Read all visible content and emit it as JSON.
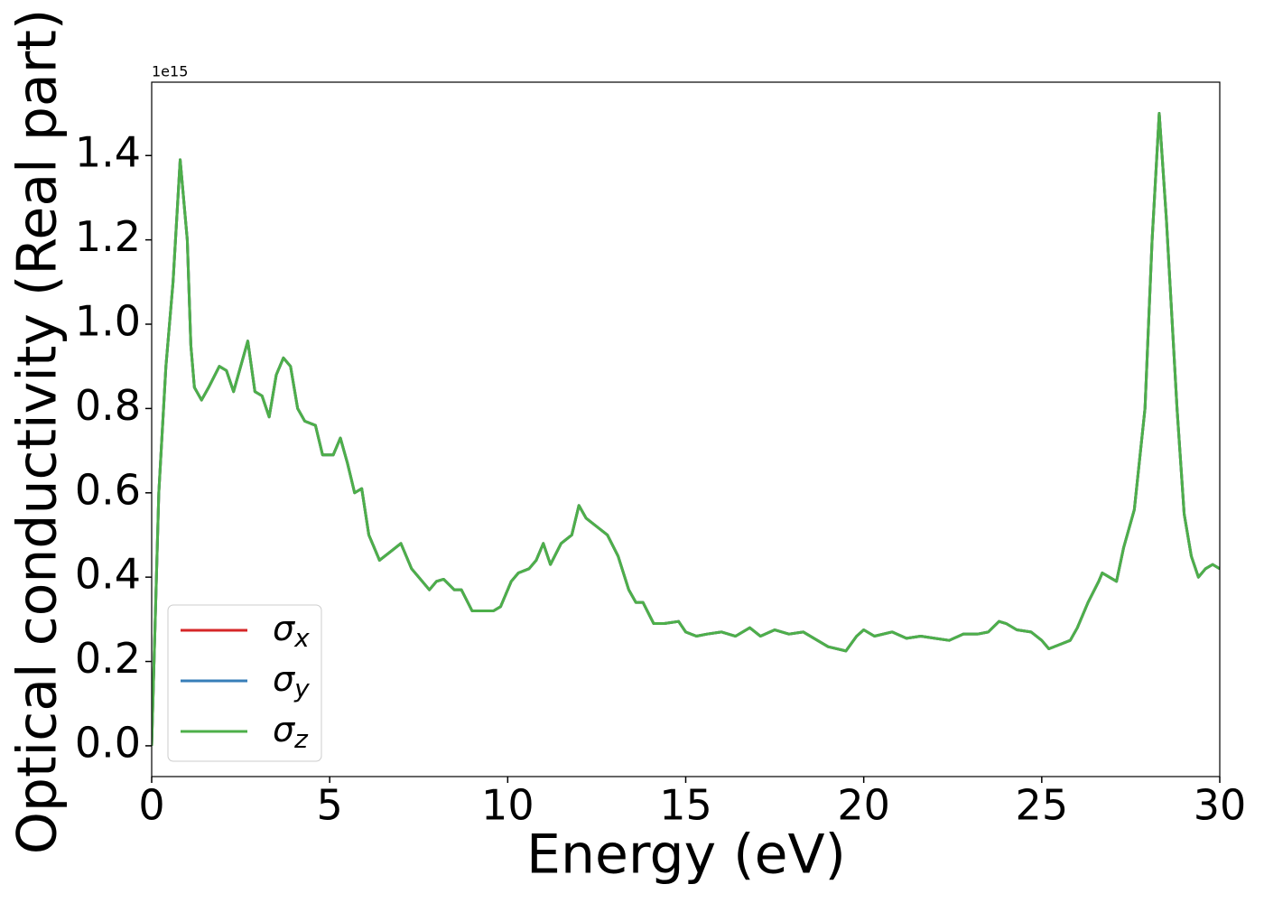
{
  "chart_data": {
    "type": "line",
    "xlabel": "Energy (eV)",
    "ylabel": "Optical conductivity (Real part)",
    "y_offset_label": "1e15",
    "x": [
      0,
      0.1,
      0.2,
      0.4,
      0.6,
      0.8,
      1.0,
      1.1,
      1.2,
      1.4,
      1.6,
      1.9,
      2.1,
      2.3,
      2.5,
      2.7,
      2.9,
      3.1,
      3.3,
      3.5,
      3.7,
      3.9,
      4.1,
      4.3,
      4.6,
      4.8,
      5.1,
      5.3,
      5.5,
      5.7,
      5.9,
      6.1,
      6.4,
      6.7,
      7.0,
      7.3,
      7.6,
      7.8,
      8.0,
      8.2,
      8.5,
      8.7,
      9.0,
      9.3,
      9.6,
      9.8,
      10.1,
      10.3,
      10.6,
      10.8,
      11.0,
      11.2,
      11.5,
      11.8,
      12.0,
      12.2,
      12.5,
      12.8,
      13.1,
      13.4,
      13.6,
      13.8,
      14.1,
      14.4,
      14.8,
      15.0,
      15.3,
      15.6,
      16.0,
      16.4,
      16.8,
      17.1,
      17.5,
      17.9,
      18.3,
      18.7,
      19.0,
      19.5,
      19.8,
      20.0,
      20.3,
      20.8,
      21.2,
      21.6,
      22.0,
      22.4,
      22.8,
      23.2,
      23.5,
      23.8,
      24.0,
      24.3,
      24.7,
      25.0,
      25.2,
      25.5,
      25.8,
      26.0,
      26.3,
      26.6,
      26.7,
      26.9,
      27.1,
      27.3,
      27.6,
      27.9,
      28.1,
      28.3,
      28.5,
      28.8,
      29.0,
      29.2,
      29.4,
      29.6,
      29.8,
      30.0
    ],
    "series": [
      {
        "name": "σx",
        "color": "#d62728",
        "values": [
          0.0,
          0.3,
          0.6,
          0.9,
          1.1,
          1.39,
          1.2,
          0.95,
          0.85,
          0.82,
          0.85,
          0.9,
          0.89,
          0.84,
          0.9,
          0.96,
          0.84,
          0.83,
          0.78,
          0.88,
          0.92,
          0.9,
          0.8,
          0.77,
          0.76,
          0.69,
          0.69,
          0.73,
          0.67,
          0.6,
          0.61,
          0.5,
          0.44,
          0.46,
          0.48,
          0.42,
          0.39,
          0.37,
          0.39,
          0.395,
          0.37,
          0.37,
          0.32,
          0.32,
          0.32,
          0.33,
          0.39,
          0.41,
          0.42,
          0.44,
          0.48,
          0.43,
          0.48,
          0.5,
          0.57,
          0.54,
          0.52,
          0.5,
          0.45,
          0.37,
          0.34,
          0.34,
          0.29,
          0.29,
          0.295,
          0.27,
          0.26,
          0.265,
          0.27,
          0.26,
          0.28,
          0.26,
          0.275,
          0.265,
          0.27,
          0.25,
          0.235,
          0.225,
          0.26,
          0.275,
          0.26,
          0.27,
          0.255,
          0.26,
          0.255,
          0.25,
          0.265,
          0.265,
          0.27,
          0.295,
          0.29,
          0.275,
          0.27,
          0.25,
          0.23,
          0.24,
          0.25,
          0.28,
          0.34,
          0.39,
          0.41,
          0.4,
          0.39,
          0.47,
          0.56,
          0.8,
          1.2,
          1.5,
          1.25,
          0.8,
          0.55,
          0.45,
          0.4,
          0.42,
          0.43,
          0.42
        ]
      },
      {
        "name": "σy",
        "color": "#377eb8",
        "values": [
          0.0,
          0.3,
          0.6,
          0.9,
          1.1,
          1.39,
          1.2,
          0.95,
          0.85,
          0.82,
          0.85,
          0.9,
          0.89,
          0.84,
          0.9,
          0.96,
          0.84,
          0.83,
          0.78,
          0.88,
          0.92,
          0.9,
          0.8,
          0.77,
          0.76,
          0.69,
          0.69,
          0.73,
          0.67,
          0.6,
          0.61,
          0.5,
          0.44,
          0.46,
          0.48,
          0.42,
          0.39,
          0.37,
          0.39,
          0.395,
          0.37,
          0.37,
          0.32,
          0.32,
          0.32,
          0.33,
          0.39,
          0.41,
          0.42,
          0.44,
          0.48,
          0.43,
          0.48,
          0.5,
          0.57,
          0.54,
          0.52,
          0.5,
          0.45,
          0.37,
          0.34,
          0.34,
          0.29,
          0.29,
          0.295,
          0.27,
          0.26,
          0.265,
          0.27,
          0.26,
          0.28,
          0.26,
          0.275,
          0.265,
          0.27,
          0.25,
          0.235,
          0.225,
          0.26,
          0.275,
          0.26,
          0.27,
          0.255,
          0.26,
          0.255,
          0.25,
          0.265,
          0.265,
          0.27,
          0.295,
          0.29,
          0.275,
          0.27,
          0.25,
          0.23,
          0.24,
          0.25,
          0.28,
          0.34,
          0.39,
          0.41,
          0.4,
          0.39,
          0.47,
          0.56,
          0.8,
          1.2,
          1.5,
          1.25,
          0.8,
          0.55,
          0.45,
          0.4,
          0.42,
          0.43,
          0.42
        ]
      },
      {
        "name": "σz",
        "color": "#4daf4a",
        "values": [
          0.0,
          0.3,
          0.6,
          0.9,
          1.1,
          1.39,
          1.2,
          0.95,
          0.85,
          0.82,
          0.85,
          0.9,
          0.89,
          0.84,
          0.9,
          0.96,
          0.84,
          0.83,
          0.78,
          0.88,
          0.92,
          0.9,
          0.8,
          0.77,
          0.76,
          0.69,
          0.69,
          0.73,
          0.67,
          0.6,
          0.61,
          0.5,
          0.44,
          0.46,
          0.48,
          0.42,
          0.39,
          0.37,
          0.39,
          0.395,
          0.37,
          0.37,
          0.32,
          0.32,
          0.32,
          0.33,
          0.39,
          0.41,
          0.42,
          0.44,
          0.48,
          0.43,
          0.48,
          0.5,
          0.57,
          0.54,
          0.52,
          0.5,
          0.45,
          0.37,
          0.34,
          0.34,
          0.29,
          0.29,
          0.295,
          0.27,
          0.26,
          0.265,
          0.27,
          0.26,
          0.28,
          0.26,
          0.275,
          0.265,
          0.27,
          0.25,
          0.235,
          0.225,
          0.26,
          0.275,
          0.26,
          0.27,
          0.255,
          0.26,
          0.255,
          0.25,
          0.265,
          0.265,
          0.27,
          0.295,
          0.29,
          0.275,
          0.27,
          0.25,
          0.23,
          0.24,
          0.25,
          0.28,
          0.34,
          0.39,
          0.41,
          0.4,
          0.39,
          0.47,
          0.56,
          0.8,
          1.2,
          1.5,
          1.25,
          0.8,
          0.55,
          0.45,
          0.4,
          0.42,
          0.43,
          0.42
        ]
      }
    ],
    "xlim": [
      0,
      30
    ],
    "xticks": [
      0,
      5,
      10,
      15,
      20,
      25,
      30
    ],
    "ylim": [
      -0.073,
      1.574
    ],
    "yticks": [
      {
        "value": 0,
        "label": "0.0"
      },
      0.2,
      0.4,
      0.6,
      0.8,
      {
        "value": 1,
        "label": "1.0"
      },
      1.2,
      1.4
    ],
    "grid": false,
    "legend": "lower left"
  }
}
